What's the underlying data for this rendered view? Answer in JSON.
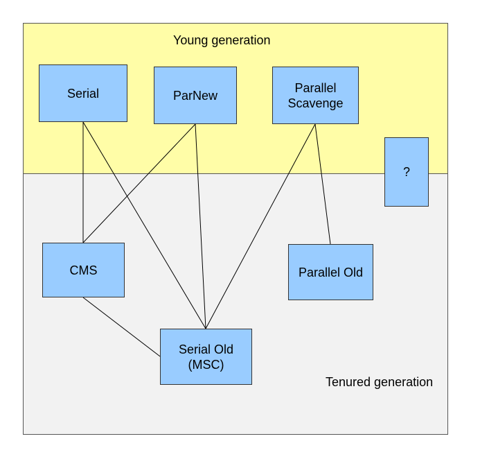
{
  "regions": {
    "young": {
      "title": "Young generation",
      "color": "#fffda7"
    },
    "tenured": {
      "title": "Tenured generation",
      "color": "#f2f2f2"
    }
  },
  "collectors": {
    "serial": "Serial",
    "parnew": "ParNew",
    "parallel_scavenge": "Parallel\nScavenge",
    "unknown": "?",
    "cms": "CMS",
    "parallel_old": "Parallel Old",
    "serial_old": "Serial Old\n(MSC)"
  },
  "box_color": "#99ccff",
  "connections": [
    [
      "serial",
      "cms"
    ],
    [
      "serial",
      "serial_old"
    ],
    [
      "parnew",
      "cms"
    ],
    [
      "parnew",
      "serial_old"
    ],
    [
      "parallel_scavenge",
      "serial_old"
    ],
    [
      "parallel_scavenge",
      "parallel_old"
    ],
    [
      "cms",
      "serial_old"
    ]
  ]
}
